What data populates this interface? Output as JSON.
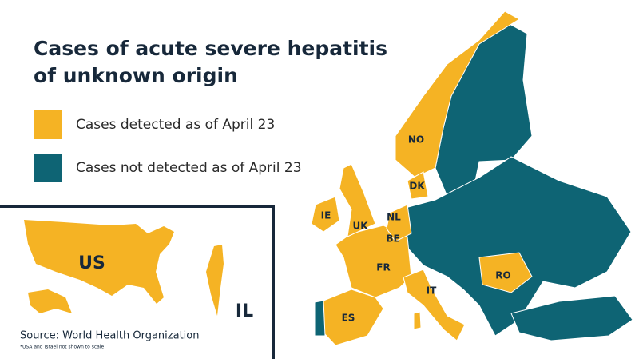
{
  "title": [
    "Cases of acute severe hepatitis",
    "of unknown origin"
  ],
  "legend": [
    {
      "label": "Cases detected as of April 23",
      "color": "#f5b324"
    },
    {
      "label": "Cases not detected as of April 23",
      "color": "#0e6474"
    }
  ],
  "country_labels": [
    "NO",
    "DK",
    "IE",
    "UK",
    "NL",
    "BE",
    "FR",
    "ES",
    "IT",
    "RO"
  ],
  "inset_labels": [
    "US",
    "IL"
  ],
  "source": "Source: World Health Organization",
  "note": "*USA and Israel not shown to scale"
}
